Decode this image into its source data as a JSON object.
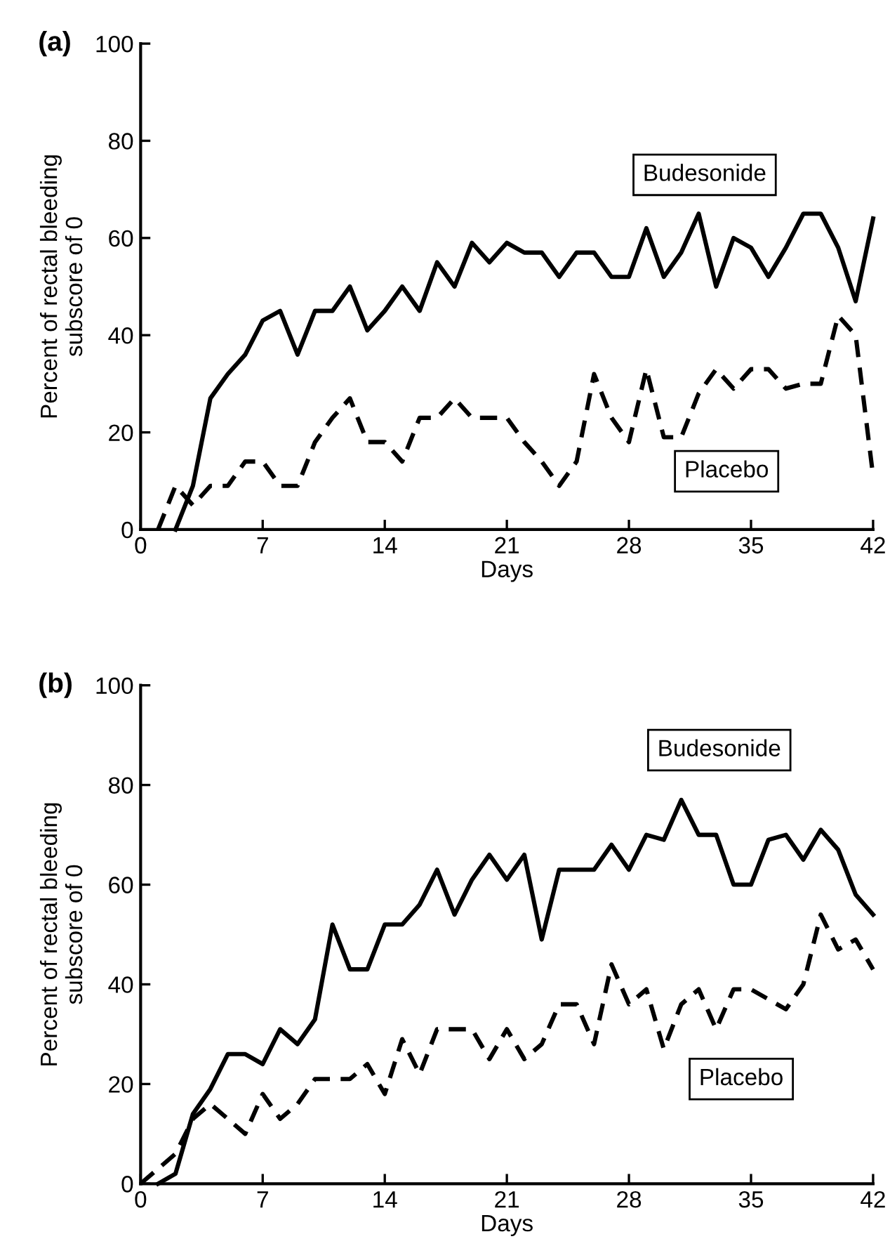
{
  "chart_data": [
    {
      "type": "line",
      "title": "(a)",
      "xlabel": "Days",
      "ylabel": "Percent of rectal bleeding\nsubscore of 0",
      "xlim": [
        0,
        42
      ],
      "ylim": [
        0,
        100
      ],
      "xticks": [
        0,
        7,
        14,
        21,
        28,
        35,
        42
      ],
      "yticks": [
        0,
        20,
        40,
        60,
        80,
        100
      ],
      "grid": false,
      "legend": false,
      "marker": "none",
      "series": [
        {
          "name": "Budesonide",
          "color": "#000000",
          "line_style": "solid",
          "x": [
            2,
            3,
            4,
            5,
            6,
            7,
            8,
            9,
            10,
            11,
            12,
            13,
            14,
            15,
            16,
            17,
            18,
            19,
            20,
            21,
            22,
            23,
            24,
            25,
            26,
            27,
            28,
            29,
            30,
            31,
            32,
            33,
            34,
            35,
            36,
            37,
            38,
            39,
            40,
            41,
            42
          ],
          "values": [
            0,
            9,
            27,
            32,
            36,
            43,
            45,
            36,
            45,
            45,
            50,
            41,
            45,
            50,
            45,
            55,
            50,
            59,
            55,
            59,
            57,
            57,
            52,
            57,
            57,
            52,
            52,
            62,
            52,
            57,
            65,
            50,
            60,
            58,
            52,
            58,
            65,
            65,
            58,
            47,
            64
          ]
        },
        {
          "name": "Placebo",
          "color": "#000000",
          "line_style": "dashed",
          "x": [
            1,
            2,
            3,
            4,
            5,
            6,
            7,
            8,
            9,
            10,
            11,
            12,
            13,
            14,
            15,
            16,
            17,
            18,
            19,
            20,
            21,
            22,
            23,
            24,
            25,
            26,
            27,
            28,
            29,
            30,
            31,
            32,
            33,
            34,
            35,
            36,
            37,
            38,
            39,
            40,
            41,
            42
          ],
          "values": [
            0,
            9,
            5,
            9,
            9,
            14,
            14,
            9,
            9,
            18,
            23,
            27,
            18,
            18,
            14,
            23,
            23,
            27,
            23,
            23,
            23,
            18,
            14,
            9,
            14,
            32,
            23,
            18,
            33,
            19,
            19,
            28,
            33,
            29,
            33,
            33,
            29,
            30,
            30,
            44,
            40,
            11
          ]
        }
      ]
    },
    {
      "type": "line",
      "title": "(b)",
      "xlabel": "Days",
      "ylabel": "Percent of rectal bleeding\nsubscore of 0",
      "xlim": [
        0,
        42
      ],
      "ylim": [
        0,
        100
      ],
      "xticks": [
        0,
        7,
        14,
        21,
        28,
        35,
        42
      ],
      "yticks": [
        0,
        20,
        40,
        60,
        80,
        100
      ],
      "grid": false,
      "legend": false,
      "marker": "none",
      "series": [
        {
          "name": "Budesonide",
          "color": "#000000",
          "line_style": "solid",
          "x": [
            1,
            2,
            3,
            4,
            5,
            6,
            7,
            8,
            9,
            10,
            11,
            12,
            13,
            14,
            15,
            16,
            17,
            18,
            19,
            20,
            21,
            22,
            23,
            24,
            25,
            26,
            27,
            28,
            29,
            30,
            31,
            32,
            33,
            34,
            35,
            36,
            37,
            38,
            39,
            40,
            41,
            42
          ],
          "values": [
            0,
            2,
            14,
            19,
            26,
            26,
            24,
            31,
            28,
            33,
            52,
            43,
            43,
            52,
            52,
            56,
            63,
            54,
            61,
            66,
            61,
            66,
            49,
            63,
            63,
            63,
            68,
            63,
            70,
            69,
            77,
            70,
            70,
            60,
            60,
            69,
            70,
            65,
            71,
            67,
            58,
            54
          ]
        },
        {
          "name": "Placebo",
          "color": "#000000",
          "line_style": "dashed",
          "x": [
            0,
            1,
            2,
            3,
            4,
            5,
            6,
            7,
            8,
            9,
            10,
            11,
            12,
            13,
            14,
            15,
            16,
            17,
            18,
            19,
            20,
            21,
            22,
            23,
            24,
            25,
            26,
            27,
            28,
            29,
            30,
            31,
            32,
            33,
            34,
            35,
            36,
            37,
            38,
            39,
            40,
            41,
            42
          ],
          "values": [
            0,
            3,
            6,
            13,
            16,
            13,
            10,
            18,
            13,
            16,
            21,
            21,
            21,
            24,
            18,
            29,
            22,
            31,
            31,
            31,
            25,
            31,
            25,
            28,
            36,
            36,
            28,
            44,
            36,
            39,
            27,
            36,
            39,
            31,
            39,
            39,
            37,
            35,
            40,
            54,
            47,
            49,
            43
          ]
        }
      ]
    }
  ]
}
